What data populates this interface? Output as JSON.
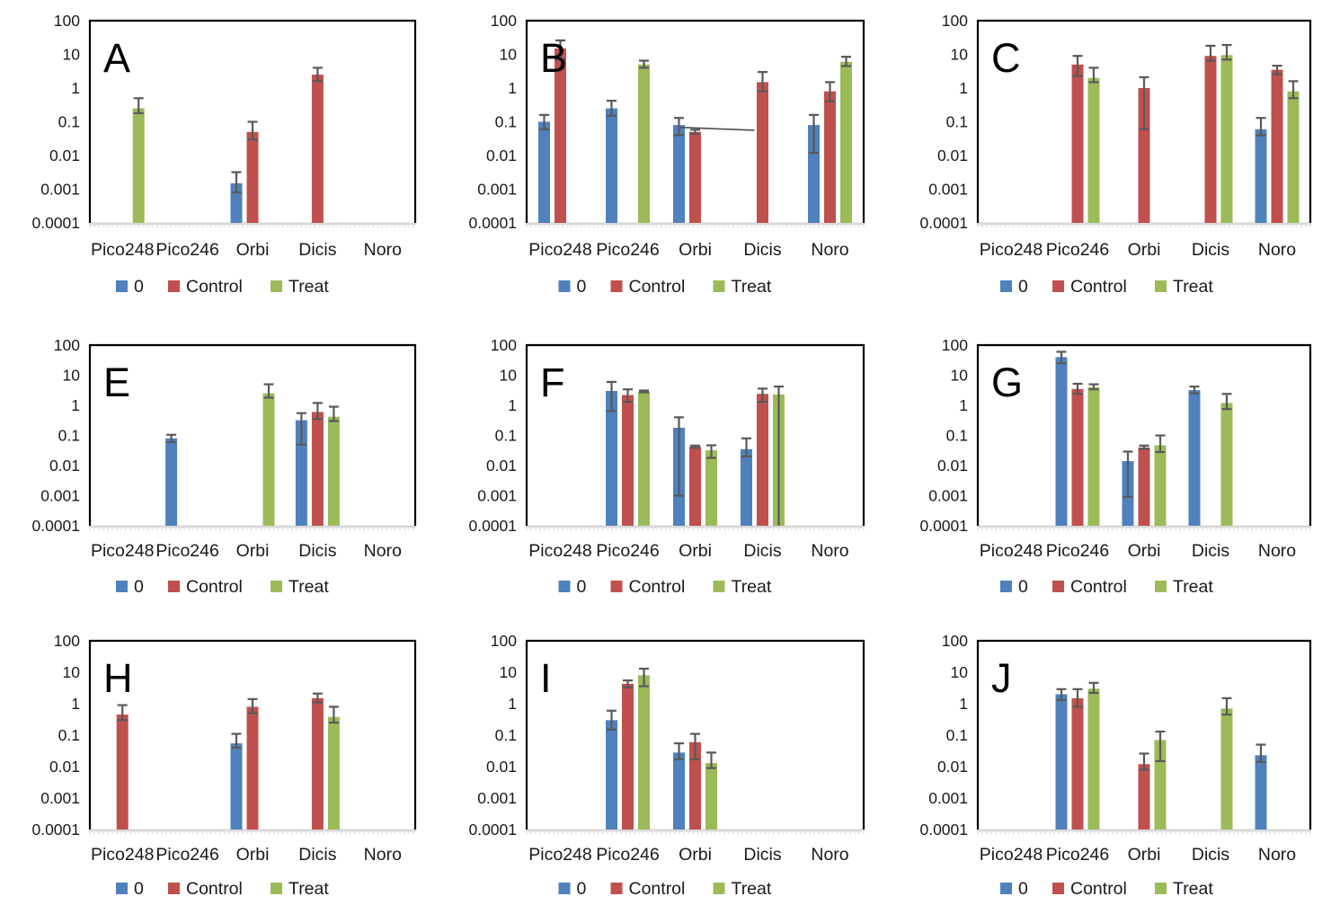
{
  "chart_data": {
    "type": "bar",
    "scale": "log",
    "ylim": [
      0.0001,
      100
    ],
    "ytick_labels": [
      "100",
      "10",
      "1",
      "0.1",
      "0.01",
      "0.001",
      "0.0001"
    ],
    "categories": [
      "Pico248",
      "Pico246",
      "Orbi",
      "Dicis",
      "Noro"
    ],
    "legend": {
      "entries": [
        {
          "label": "0",
          "color": "#4F81BD"
        },
        {
          "label": "Control",
          "color": "#C0504D"
        },
        {
          "label": "Treat",
          "color": "#9BBB59"
        }
      ],
      "position": "bottom"
    },
    "series_names": [
      "0",
      "Control",
      "Treat"
    ],
    "series_colors": {
      "0": "#4F81BD",
      "Control": "#C0504D",
      "Treat": "#9BBB59"
    },
    "error_bar_color": "#595959",
    "grid": false,
    "panels": [
      {
        "letter": "A",
        "bars": {
          "0": {
            "v": [
              null,
              null,
              0.0015,
              null,
              null
            ],
            "lo": [
              null,
              null,
              0.0008,
              null,
              null
            ],
            "hi": [
              null,
              null,
              0.0032,
              null,
              null
            ]
          },
          "Control": {
            "v": [
              null,
              null,
              0.05,
              2.5,
              null
            ],
            "lo": [
              null,
              null,
              0.03,
              1.6,
              null
            ],
            "hi": [
              null,
              null,
              0.1,
              4,
              null
            ]
          },
          "Treat": {
            "v": [
              0.25,
              null,
              null,
              null,
              null
            ],
            "lo": [
              0.18,
              null,
              null,
              null,
              null
            ],
            "hi": [
              0.5,
              null,
              null,
              null,
              null
            ]
          }
        }
      },
      {
        "letter": "B",
        "bars": {
          "0": {
            "v": [
              0.1,
              0.25,
              0.08,
              null,
              0.08
            ],
            "lo": [
              0.06,
              0.15,
              0.04,
              null,
              0.012
            ],
            "hi": [
              0.16,
              0.42,
              0.13,
              null,
              0.16
            ]
          },
          "Control": {
            "v": [
              15,
              null,
              0.05,
              1.5,
              0.8
            ],
            "lo": [
              7,
              null,
              0.044,
              0.8,
              0.4
            ],
            "hi": [
              26,
              null,
              0.058,
              3,
              1.5
            ]
          },
          "Treat": {
            "v": [
              null,
              5,
              null,
              null,
              6
            ],
            "lo": [
              null,
              4,
              null,
              null,
              4.5
            ],
            "hi": [
              null,
              6.5,
              null,
              null,
              8.5
            ]
          }
        },
        "annotation_line": {
          "x1": 2.28,
          "y1": 0.068,
          "x2": 3.38,
          "y2": 0.056
        }
      },
      {
        "letter": "C",
        "bars": {
          "0": {
            "v": [
              null,
              null,
              null,
              null,
              0.06
            ],
            "lo": [
              null,
              null,
              null,
              null,
              0.04
            ],
            "hi": [
              null,
              null,
              null,
              null,
              0.13
            ]
          },
          "Control": {
            "v": [
              null,
              5,
              1,
              9,
              3.5
            ],
            "lo": [
              null,
              2.3,
              0.06,
              6.5,
              2.6
            ],
            "hi": [
              null,
              9,
              2.1,
              18,
              4.6
            ]
          },
          "Treat": {
            "v": [
              null,
              2,
              null,
              9.5,
              0.8
            ],
            "lo": [
              null,
              1.5,
              null,
              7,
              0.5
            ],
            "hi": [
              null,
              4,
              null,
              19,
              1.6
            ]
          }
        }
      },
      {
        "letter": "E",
        "bars": {
          "0": {
            "v": [
              null,
              0.08,
              null,
              0.32,
              null
            ],
            "lo": [
              null,
              0.06,
              null,
              0.05,
              null
            ],
            "hi": [
              null,
              0.105,
              null,
              0.55,
              null
            ]
          },
          "Control": {
            "v": [
              null,
              null,
              null,
              0.6,
              null
            ],
            "lo": [
              null,
              null,
              null,
              0.35,
              null
            ],
            "hi": [
              null,
              null,
              null,
              1.2,
              null
            ]
          },
          "Treat": {
            "v": [
              null,
              null,
              2.5,
              0.42,
              null
            ],
            "lo": [
              null,
              null,
              1.8,
              0.3,
              null
            ],
            "hi": [
              null,
              null,
              5,
              0.9,
              null
            ]
          }
        }
      },
      {
        "letter": "F",
        "bars": {
          "0": {
            "v": [
              null,
              3,
              0.18,
              0.035,
              null
            ],
            "lo": [
              null,
              0.65,
              0.001,
              0.02,
              null
            ],
            "hi": [
              null,
              6,
              0.4,
              0.08,
              null
            ]
          },
          "Control": {
            "v": [
              null,
              2.2,
              0.042,
              2.4,
              null
            ],
            "lo": [
              null,
              1.3,
              0.039,
              1.3,
              null
            ],
            "hi": [
              null,
              3.4,
              0.046,
              3.6,
              null
            ]
          },
          "Treat": {
            "v": [
              null,
              2.8,
              0.032,
              2.3,
              null
            ],
            "lo": [
              null,
              2.7,
              0.018,
              0.0001,
              null
            ],
            "hi": [
              null,
              3.1,
              0.047,
              4.2,
              null
            ]
          }
        }
      },
      {
        "letter": "G",
        "bars": {
          "0": {
            "v": [
              null,
              40,
              0.014,
              3.2,
              null
            ],
            "lo": [
              null,
              25,
              0.0009,
              2.5,
              null
            ],
            "hi": [
              null,
              60,
              0.029,
              4.2,
              null
            ]
          },
          "Control": {
            "v": [
              null,
              3.5,
              0.04,
              null,
              null
            ],
            "lo": [
              null,
              2.4,
              0.036,
              null,
              null
            ],
            "hi": [
              null,
              5.2,
              0.046,
              null,
              null
            ]
          },
          "Treat": {
            "v": [
              null,
              4,
              0.047,
              1.2,
              null
            ],
            "lo": [
              null,
              3.4,
              0.028,
              0.75,
              null
            ],
            "hi": [
              null,
              5,
              0.1,
              2.4,
              null
            ]
          }
        }
      },
      {
        "letter": "H",
        "bars": {
          "0": {
            "v": [
              null,
              null,
              0.055,
              null,
              null
            ],
            "lo": [
              null,
              null,
              0.04,
              null,
              null
            ],
            "hi": [
              null,
              null,
              0.11,
              null,
              null
            ]
          },
          "Control": {
            "v": [
              0.45,
              null,
              0.8,
              1.5,
              null
            ],
            "lo": [
              0.3,
              null,
              0.5,
              1.1,
              null
            ],
            "hi": [
              0.9,
              null,
              1.4,
              2.1,
              null
            ]
          },
          "Treat": {
            "v": [
              null,
              null,
              null,
              0.38,
              null
            ],
            "lo": [
              null,
              null,
              null,
              0.25,
              null
            ],
            "hi": [
              null,
              null,
              null,
              0.8,
              null
            ]
          }
        }
      },
      {
        "letter": "I",
        "bars": {
          "0": {
            "v": [
              null,
              0.3,
              0.028,
              null,
              null
            ],
            "lo": [
              null,
              0.15,
              0.017,
              null,
              null
            ],
            "hi": [
              null,
              0.6,
              0.055,
              null,
              null
            ]
          },
          "Control": {
            "v": [
              null,
              4.3,
              0.06,
              null,
              null
            ],
            "lo": [
              null,
              3.3,
              0.017,
              null,
              null
            ],
            "hi": [
              null,
              5.5,
              0.11,
              null,
              null
            ]
          },
          "Treat": {
            "v": [
              null,
              8,
              0.013,
              null,
              null
            ],
            "lo": [
              null,
              3.6,
              0.009,
              null,
              null
            ],
            "hi": [
              null,
              13,
              0.028,
              null,
              null
            ]
          }
        }
      },
      {
        "letter": "J",
        "bars": {
          "0": {
            "v": [
              null,
              2,
              null,
              null,
              0.023
            ],
            "lo": [
              null,
              1.3,
              null,
              null,
              0.014
            ],
            "hi": [
              null,
              2.9,
              null,
              null,
              0.05
            ]
          },
          "Control": {
            "v": [
              null,
              1.5,
              0.012,
              null,
              null
            ],
            "lo": [
              null,
              0.8,
              0.008,
              null,
              null
            ],
            "hi": [
              null,
              2.9,
              0.026,
              null,
              null
            ]
          },
          "Treat": {
            "v": [
              null,
              3,
              0.07,
              0.7,
              null
            ],
            "lo": [
              null,
              2.2,
              0.015,
              0.45,
              null
            ],
            "hi": [
              null,
              4.6,
              0.13,
              1.5,
              null
            ]
          }
        }
      }
    ]
  }
}
